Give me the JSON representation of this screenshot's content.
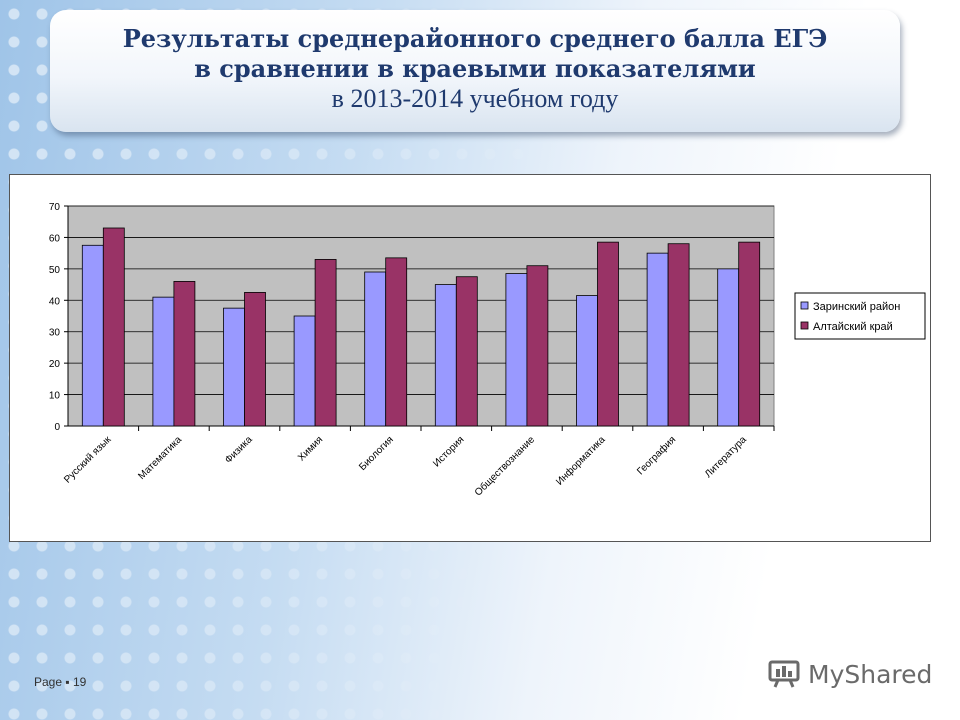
{
  "title": {
    "line1": "Результаты среднерайонного среднего балла ЕГЭ",
    "line2": "в сравнении в краевыми показателями",
    "line3": "в 2013-2014 учебном году"
  },
  "footer": {
    "page_label": "Page ▪ 19",
    "logo_text": "MyShared"
  },
  "colors": {
    "series1": "#9999ff",
    "series2": "#993366",
    "plot_bg": "#c0c0c0"
  },
  "chart_data": {
    "type": "bar",
    "categories": [
      "Русский язык",
      "Математика",
      "Физика",
      "Химия",
      "Биология",
      "История",
      "Обществознание",
      "Информатика",
      "География",
      "Литература"
    ],
    "series": [
      {
        "name": "Заринский район",
        "values": [
          57.5,
          41,
          37.5,
          35,
          49,
          45,
          48.5,
          41.5,
          55,
          50
        ]
      },
      {
        "name": "Алтайский край",
        "values": [
          63,
          46,
          42.5,
          53,
          53.5,
          47.5,
          51,
          58.5,
          58,
          58.5
        ]
      }
    ],
    "yticks": [
      0,
      10,
      20,
      30,
      40,
      50,
      60,
      70
    ],
    "ylim": [
      0,
      70
    ],
    "grid": true,
    "legend": "right"
  }
}
